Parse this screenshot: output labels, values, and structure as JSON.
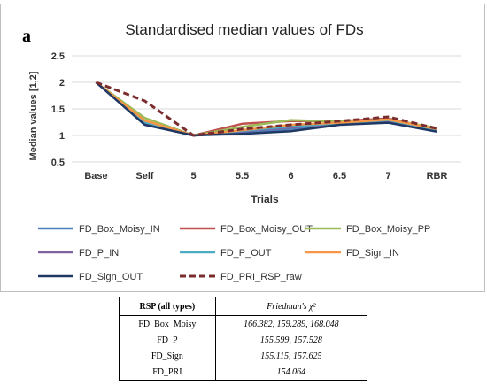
{
  "chart_data": {
    "type": "line",
    "panel_label": "a",
    "title": "Standardised median values of FDs",
    "xlabel": "Trials",
    "ylabel": "Median values [1,2]",
    "ylim": [
      0.5,
      2.5
    ],
    "yticks": [
      "2.5",
      "2",
      "1.5",
      "1",
      "0.5"
    ],
    "ytick_values": [
      2.5,
      2,
      1.5,
      1,
      0.5
    ],
    "grid": true,
    "legend_position": "bottom",
    "categories": [
      "Base",
      "Self",
      "5",
      "5.5",
      "6",
      "6.5",
      "7",
      "RBR"
    ],
    "series": [
      {
        "name": "FD_Box_Moisy_IN",
        "color": "#4f81bd",
        "dash": false,
        "values": [
          2.0,
          1.22,
          1.0,
          1.05,
          1.12,
          1.22,
          1.27,
          1.09
        ]
      },
      {
        "name": "FD_Box_Moisy_OUT",
        "color": "#c0504d",
        "dash": false,
        "values": [
          2.0,
          1.25,
          1.0,
          1.22,
          1.27,
          1.27,
          1.32,
          1.12
        ]
      },
      {
        "name": "FD_Box_Moisy_PP",
        "color": "#9bbb59",
        "dash": false,
        "values": [
          2.0,
          1.33,
          1.0,
          1.16,
          1.29,
          1.26,
          1.3,
          1.14
        ]
      },
      {
        "name": "FD_P_IN",
        "color": "#8064a2",
        "dash": false,
        "values": [
          2.0,
          1.24,
          1.0,
          1.08,
          1.15,
          1.22,
          1.28,
          1.09
        ]
      },
      {
        "name": "FD_P_OUT",
        "color": "#4bacc6",
        "dash": false,
        "values": [
          2.0,
          1.25,
          1.0,
          1.09,
          1.17,
          1.23,
          1.29,
          1.1
        ]
      },
      {
        "name": "FD_Sign_IN",
        "color": "#f79646",
        "dash": false,
        "values": [
          2.0,
          1.28,
          1.0,
          1.1,
          1.2,
          1.24,
          1.3,
          1.12
        ]
      },
      {
        "name": "FD_Sign_OUT",
        "color": "#1f3864",
        "dash": false,
        "values": [
          2.0,
          1.2,
          1.0,
          1.03,
          1.08,
          1.2,
          1.24,
          1.07
        ]
      },
      {
        "name": "FD_PRI_RSP_raw",
        "color": "#7b2c2c",
        "dash": true,
        "values": [
          2.0,
          1.65,
          1.0,
          1.12,
          1.2,
          1.27,
          1.35,
          1.13
        ]
      }
    ]
  },
  "table": {
    "headers": [
      "RSP (all types)",
      "Friedman's χ²"
    ],
    "rows": [
      [
        "FD_Box_Moisy",
        "166.382, 159.289, 168.048"
      ],
      [
        "FD_P",
        "155.599, 157.528"
      ],
      [
        "FD_Sign",
        "155.115, 157.625"
      ],
      [
        "FD_PRI",
        "154.064"
      ]
    ]
  }
}
